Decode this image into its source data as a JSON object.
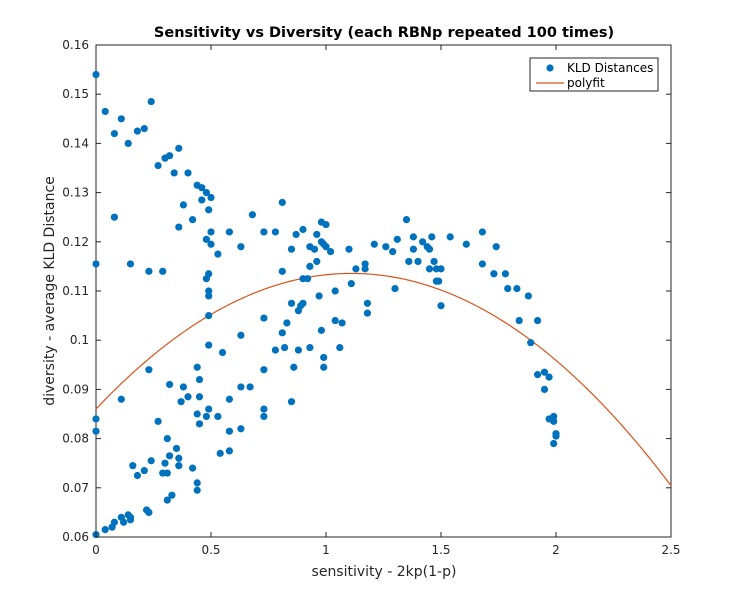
{
  "chart_data": {
    "type": "scatter",
    "title": "Sensitivity vs Diversity (each RBNp repeated 100 times)",
    "xlabel": "sensitivity - 2kp(1-p)",
    "ylabel": "diversity - average KLD Distance",
    "xlim": [
      0,
      2.5
    ],
    "ylim": [
      0.06,
      0.16
    ],
    "xticks": [
      0,
      0.5,
      1,
      1.5,
      2,
      2.5
    ],
    "xtick_labels": [
      "0",
      "0.5",
      "1",
      "1.5",
      "2",
      "2.5"
    ],
    "yticks": [
      0.06,
      0.07,
      0.08,
      0.09,
      0.1,
      0.11,
      0.12,
      0.13,
      0.14,
      0.15,
      0.16
    ],
    "ytick_labels": [
      "0.06",
      "0.07",
      "0.08",
      "0.09",
      "0.1",
      "0.11",
      "0.12",
      "0.13",
      "0.14",
      "0.15",
      "0.16"
    ],
    "grid": false,
    "legend_position": "top-right",
    "series": [
      {
        "name": "KLD Distances",
        "kind": "scatter",
        "color": "#0072BD",
        "points": [
          [
            0.0,
            0.154
          ],
          [
            0.04,
            0.1465
          ],
          [
            0.11,
            0.145
          ],
          [
            0.08,
            0.142
          ],
          [
            0.14,
            0.14
          ],
          [
            0.18,
            0.1425
          ],
          [
            0.21,
            0.143
          ],
          [
            0.24,
            0.1485
          ],
          [
            0.3,
            0.137
          ],
          [
            0.32,
            0.1375
          ],
          [
            0.36,
            0.139
          ],
          [
            0.27,
            0.1355
          ],
          [
            0.34,
            0.134
          ],
          [
            0.4,
            0.134
          ],
          [
            0.38,
            0.1275
          ],
          [
            0.44,
            0.1315
          ],
          [
            0.46,
            0.131
          ],
          [
            0.48,
            0.13
          ],
          [
            0.5,
            0.129
          ],
          [
            0.46,
            0.1285
          ],
          [
            0.42,
            0.1245
          ],
          [
            0.36,
            0.123
          ],
          [
            0.49,
            0.1265
          ],
          [
            0.48,
            0.1205
          ],
          [
            0.5,
            0.122
          ],
          [
            0.5,
            0.1195
          ],
          [
            0.53,
            0.1175
          ],
          [
            0.58,
            0.122
          ],
          [
            0.63,
            0.119
          ],
          [
            0.68,
            0.1255
          ],
          [
            0.73,
            0.122
          ],
          [
            0.78,
            0.122
          ],
          [
            0.81,
            0.128
          ],
          [
            0.85,
            0.1185
          ],
          [
            0.87,
            0.1215
          ],
          [
            0.9,
            0.1225
          ],
          [
            0.93,
            0.119
          ],
          [
            0.95,
            0.1185
          ],
          [
            0.96,
            0.1215
          ],
          [
            0.98,
            0.124
          ],
          [
            1.0,
            0.1235
          ],
          [
            0.98,
            0.12
          ],
          [
            0.99,
            0.1195
          ],
          [
            1.0,
            0.119
          ],
          [
            0.96,
            0.116
          ],
          [
            0.93,
            0.115
          ],
          [
            1.02,
            0.118
          ],
          [
            1.1,
            0.1185
          ],
          [
            1.17,
            0.1155
          ],
          [
            1.17,
            0.1145
          ],
          [
            1.21,
            0.1195
          ],
          [
            1.26,
            0.119
          ],
          [
            1.29,
            0.118
          ],
          [
            1.31,
            0.1205
          ],
          [
            1.35,
            0.1245
          ],
          [
            1.36,
            0.116
          ],
          [
            1.38,
            0.121
          ],
          [
            1.38,
            0.1185
          ],
          [
            1.4,
            0.116
          ],
          [
            1.42,
            0.12
          ],
          [
            1.44,
            0.119
          ],
          [
            1.45,
            0.1185
          ],
          [
            1.46,
            0.121
          ],
          [
            1.47,
            0.116
          ],
          [
            1.48,
            0.1145
          ],
          [
            1.45,
            0.1145
          ],
          [
            1.48,
            0.112
          ],
          [
            1.49,
            0.112
          ],
          [
            1.5,
            0.1145
          ],
          [
            1.5,
            0.107
          ],
          [
            1.54,
            0.121
          ],
          [
            1.61,
            0.1195
          ],
          [
            1.68,
            0.122
          ],
          [
            1.68,
            0.1155
          ],
          [
            1.73,
            0.1135
          ],
          [
            1.74,
            0.119
          ],
          [
            1.78,
            0.1135
          ],
          [
            1.79,
            0.1105
          ],
          [
            1.83,
            0.1105
          ],
          [
            1.84,
            0.104
          ],
          [
            1.88,
            0.109
          ],
          [
            1.89,
            0.0995
          ],
          [
            1.92,
            0.104
          ],
          [
            1.92,
            0.093
          ],
          [
            1.95,
            0.0935
          ],
          [
            1.95,
            0.09
          ],
          [
            1.97,
            0.0925
          ],
          [
            1.97,
            0.084
          ],
          [
            1.99,
            0.0845
          ],
          [
            1.99,
            0.0835
          ],
          [
            2.0,
            0.081
          ],
          [
            1.99,
            0.079
          ],
          [
            2.0,
            0.0805
          ],
          [
            0.0,
            0.1155
          ],
          [
            0.08,
            0.125
          ],
          [
            0.15,
            0.1155
          ],
          [
            0.23,
            0.114
          ],
          [
            0.29,
            0.114
          ],
          [
            0.48,
            0.1125
          ],
          [
            0.49,
            0.1135
          ],
          [
            0.49,
            0.11
          ],
          [
            0.49,
            0.109
          ],
          [
            0.49,
            0.105
          ],
          [
            0.81,
            0.114
          ],
          [
            0.85,
            0.1075
          ],
          [
            0.89,
            0.107
          ],
          [
            0.9,
            0.1075
          ],
          [
            0.88,
            0.106
          ],
          [
            0.9,
            0.1125
          ],
          [
            0.92,
            0.1125
          ],
          [
            0.97,
            0.109
          ],
          [
            1.04,
            0.11
          ],
          [
            1.11,
            0.1115
          ],
          [
            1.13,
            0.1145
          ],
          [
            1.3,
            0.1105
          ],
          [
            1.18,
            0.1075
          ],
          [
            1.18,
            0.1055
          ],
          [
            1.04,
            0.104
          ],
          [
            1.07,
            0.1035
          ],
          [
            0.98,
            0.102
          ],
          [
            0.83,
            0.1035
          ],
          [
            0.81,
            0.1015
          ],
          [
            0.78,
            0.098
          ],
          [
            0.82,
            0.0985
          ],
          [
            0.88,
            0.098
          ],
          [
            0.93,
            0.0985
          ],
          [
            0.99,
            0.0965
          ],
          [
            0.99,
            0.0945
          ],
          [
            1.06,
            0.0985
          ],
          [
            0.86,
            0.0945
          ],
          [
            0.73,
            0.1045
          ],
          [
            0.63,
            0.101
          ],
          [
            0.55,
            0.0975
          ],
          [
            0.49,
            0.099
          ],
          [
            0.44,
            0.0945
          ],
          [
            0.45,
            0.092
          ],
          [
            0.38,
            0.0905
          ],
          [
            0.37,
            0.0875
          ],
          [
            0.4,
            0.0885
          ],
          [
            0.45,
            0.0885
          ],
          [
            0.49,
            0.086
          ],
          [
            0.44,
            0.085
          ],
          [
            0.48,
            0.0845
          ],
          [
            0.45,
            0.083
          ],
          [
            0.53,
            0.0845
          ],
          [
            0.58,
            0.088
          ],
          [
            0.63,
            0.0905
          ],
          [
            0.67,
            0.0905
          ],
          [
            0.73,
            0.094
          ],
          [
            0.73,
            0.086
          ],
          [
            0.73,
            0.0845
          ],
          [
            0.85,
            0.0875
          ],
          [
            0.58,
            0.0815
          ],
          [
            0.63,
            0.082
          ],
          [
            0.54,
            0.077
          ],
          [
            0.58,
            0.0775
          ],
          [
            0.23,
            0.094
          ],
          [
            0.32,
            0.091
          ],
          [
            0.27,
            0.0835
          ],
          [
            0.31,
            0.08
          ],
          [
            0.35,
            0.078
          ],
          [
            0.36,
            0.076
          ],
          [
            0.32,
            0.0765
          ],
          [
            0.3,
            0.075
          ],
          [
            0.36,
            0.0745
          ],
          [
            0.42,
            0.074
          ],
          [
            0.44,
            0.071
          ],
          [
            0.44,
            0.0695
          ],
          [
            0.33,
            0.0685
          ],
          [
            0.31,
            0.0675
          ],
          [
            0.31,
            0.073
          ],
          [
            0.29,
            0.073
          ],
          [
            0.24,
            0.0755
          ],
          [
            0.21,
            0.0735
          ],
          [
            0.16,
            0.0745
          ],
          [
            0.18,
            0.0725
          ],
          [
            0.11,
            0.088
          ],
          [
            0.0,
            0.084
          ],
          [
            0.0,
            0.0815
          ],
          [
            0.0,
            0.0605
          ],
          [
            0.04,
            0.0615
          ],
          [
            0.07,
            0.062
          ],
          [
            0.08,
            0.063
          ],
          [
            0.11,
            0.064
          ],
          [
            0.12,
            0.063
          ],
          [
            0.14,
            0.0645
          ],
          [
            0.15,
            0.064
          ],
          [
            0.15,
            0.0635
          ],
          [
            0.22,
            0.0655
          ],
          [
            0.23,
            0.065
          ]
        ]
      },
      {
        "name": "polyfit",
        "kind": "curve",
        "color": "#D95319",
        "polynomial": "y = 0.0860 + 0.04965*x - 0.02235*x^2",
        "coefficients": [
          0.086,
          0.04965,
          -0.02235
        ],
        "x_range": [
          0,
          2.5
        ]
      }
    ]
  }
}
